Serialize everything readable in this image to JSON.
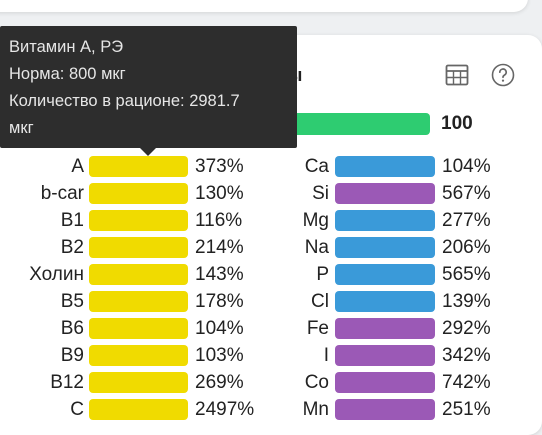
{
  "card": {
    "title": "ы"
  },
  "energy": {
    "value": "100",
    "color": "#2ecc71"
  },
  "tooltip": {
    "line1": "Витамин A, РЭ",
    "line2": "Норма: 800 мкг",
    "line3": "Количество в рационе: 2981.7",
    "line4": "мкг"
  },
  "colors": {
    "vitamin": "#f0db00",
    "mineral_blue": "#3a9ad9",
    "mineral_purple": "#9b59b6"
  },
  "icons": {
    "table": "table-icon",
    "help": "help-icon"
  },
  "vitamins": [
    {
      "label": "A",
      "pct": "373%"
    },
    {
      "label": "b-car",
      "pct": "130%"
    },
    {
      "label": "B1",
      "pct": "116%"
    },
    {
      "label": "B2",
      "pct": "214%"
    },
    {
      "label": "Холин",
      "pct": "143%"
    },
    {
      "label": "B5",
      "pct": "178%"
    },
    {
      "label": "B6",
      "pct": "104%"
    },
    {
      "label": "B9",
      "pct": "103%"
    },
    {
      "label": "B12",
      "pct": "269%"
    },
    {
      "label": "C",
      "pct": "2497%"
    }
  ],
  "minerals": [
    {
      "label": "Ca",
      "pct": "104%",
      "color": "blue"
    },
    {
      "label": "Si",
      "pct": "567%",
      "color": "purple"
    },
    {
      "label": "Mg",
      "pct": "277%",
      "color": "blue"
    },
    {
      "label": "Na",
      "pct": "206%",
      "color": "blue"
    },
    {
      "label": "P",
      "pct": "565%",
      "color": "blue"
    },
    {
      "label": "Cl",
      "pct": "139%",
      "color": "blue"
    },
    {
      "label": "Fe",
      "pct": "292%",
      "color": "purple"
    },
    {
      "label": "I",
      "pct": "342%",
      "color": "purple"
    },
    {
      "label": "Co",
      "pct": "742%",
      "color": "purple"
    },
    {
      "label": "Mn",
      "pct": "251%",
      "color": "purple"
    }
  ]
}
